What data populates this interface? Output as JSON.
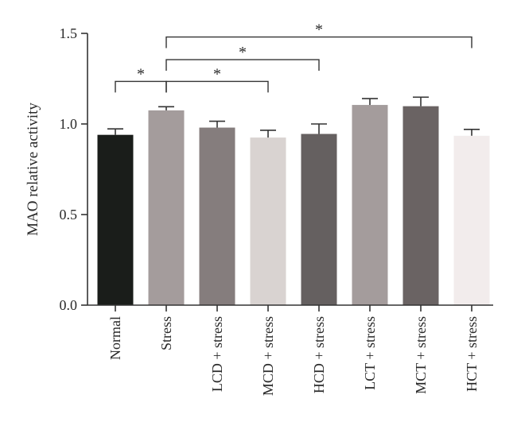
{
  "chart_data": {
    "type": "bar",
    "ylabel": "MAO relative activity",
    "xlabel": "",
    "ylim": [
      0,
      1.5
    ],
    "yticks": [
      {
        "value": 0,
        "label": "0.0"
      },
      {
        "value": 0.5,
        "label": "0.5"
      },
      {
        "value": 1.0,
        "label": "1.0"
      },
      {
        "value": 1.5,
        "label": "1.5"
      }
    ],
    "categories": [
      "Normal",
      "Stress",
      "LCD + stress",
      "MCD + stress",
      "HCD + stress",
      "LCT + stress",
      "MCT + stress",
      "HCT + stress"
    ],
    "values": [
      0.94,
      1.075,
      0.98,
      0.925,
      0.945,
      1.105,
      1.098,
      0.935
    ],
    "errors": [
      0.033,
      0.02,
      0.035,
      0.04,
      0.055,
      0.035,
      0.05,
      0.035
    ],
    "colors": [
      "#1a1d1a",
      "#a49c9c",
      "#857d7d",
      "#d9d3d1",
      "#656060",
      "#a49c9c",
      "#6a6363",
      "#f2ecec"
    ],
    "significance": [
      {
        "from": 0,
        "to": 1,
        "label": "*",
        "level": 1.235
      },
      {
        "from": 1,
        "to": 3,
        "label": "*",
        "level": 1.235
      },
      {
        "from": 1,
        "to": 4,
        "label": "*",
        "level": 1.355
      },
      {
        "from": 1,
        "to": 7,
        "label": "*",
        "level": 1.48
      }
    ],
    "grid": false,
    "legend": "none"
  }
}
